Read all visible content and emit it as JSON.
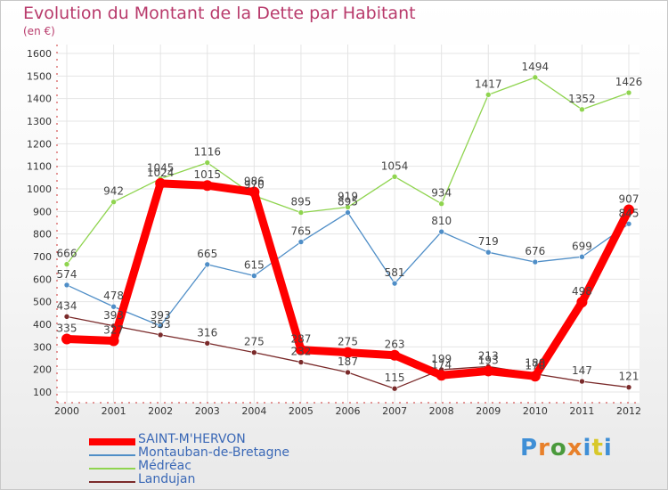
{
  "title": "Evolution du Montant de la Dette par Habitant",
  "unit": "(en €)",
  "logo": "Proxiti",
  "chart_data": {
    "type": "line",
    "title": "Evolution du Montant de la Dette par Habitant",
    "ylabel": "(en €)",
    "xlabel": "",
    "x": [
      "2000",
      "2001",
      "2002",
      "2003",
      "2004",
      "2005",
      "2006",
      "2007",
      "2008",
      "2009",
      "2010",
      "2011",
      "2012"
    ],
    "ylim": [
      100,
      1600
    ],
    "yticks": [
      100,
      200,
      300,
      400,
      500,
      600,
      700,
      800,
      900,
      1000,
      1100,
      1200,
      1300,
      1400,
      1500,
      1600
    ],
    "grid": true,
    "legend": "bottom-left",
    "series": [
      {
        "name": "SAINT-M'HERVON",
        "color": "#ff0000",
        "values": [
          335,
          327,
          1024,
          1015,
          986,
          287,
          275,
          263,
          174,
          193,
          170,
          498,
          907
        ]
      },
      {
        "name": "Montauban-de-Bretagne",
        "color": "#4f8ec7",
        "values": [
          574,
          478,
          393,
          665,
          615,
          765,
          895,
          581,
          810,
          719,
          676,
          699,
          845
        ]
      },
      {
        "name": "Médréac",
        "color": "#8fd44f",
        "values": [
          666,
          942,
          1045,
          1116,
          970,
          895,
          919,
          1054,
          934,
          1417,
          1494,
          1352,
          1426
        ]
      },
      {
        "name": "Landujan",
        "color": "#7a2a2a",
        "values": [
          434,
          393,
          353,
          316,
          275,
          232,
          187,
          115,
          199,
          213,
          180,
          147,
          121
        ]
      }
    ]
  }
}
